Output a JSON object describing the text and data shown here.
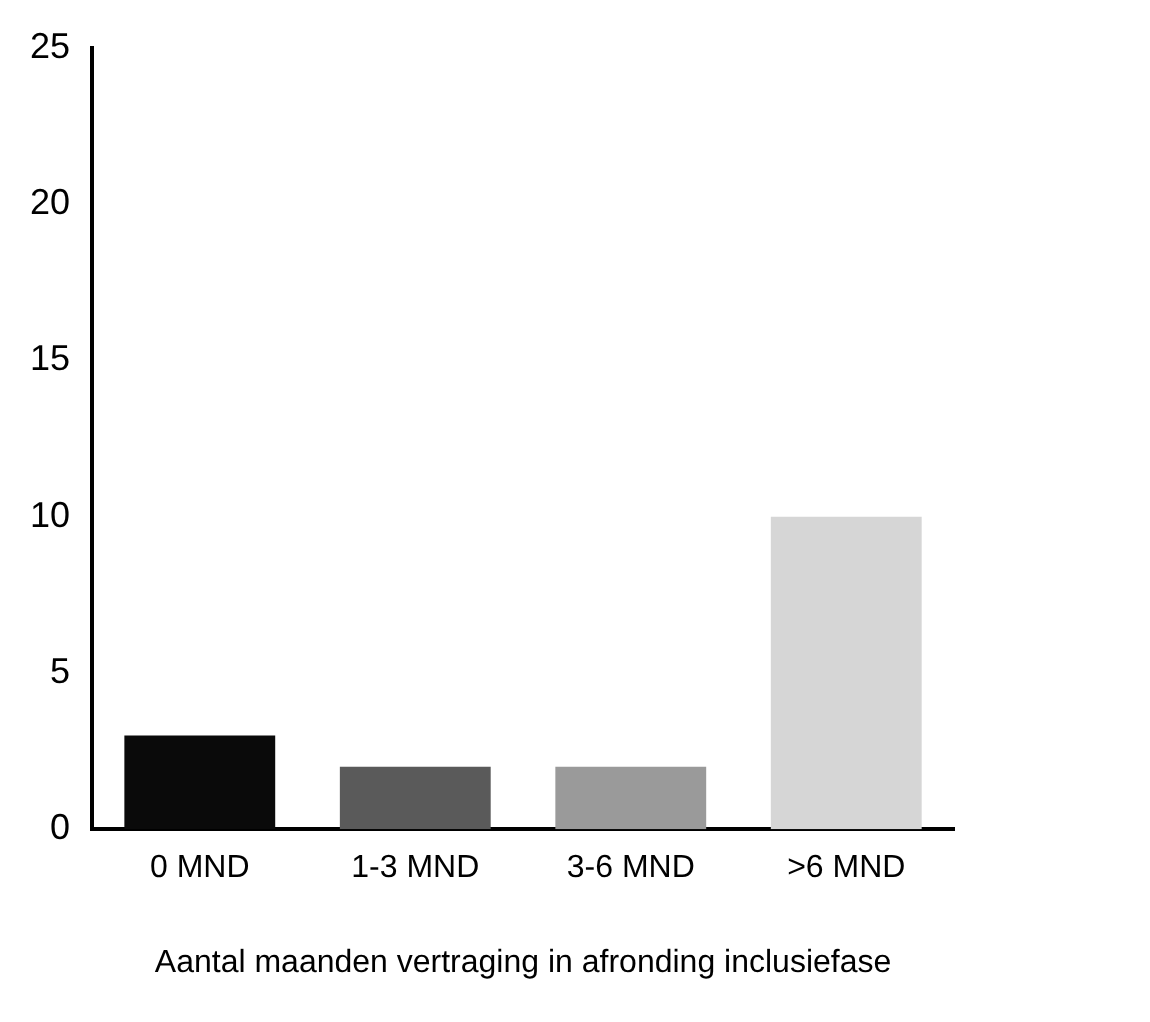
{
  "chart_data": {
    "type": "bar",
    "xlabel": "Aantal maanden vertraging in afronding inclusiefase",
    "categories": [
      "0 MND",
      "1-3 MND",
      "3-6 MND",
      ">6 MND"
    ],
    "values": [
      3,
      2,
      2,
      10
    ],
    "colors": [
      "#0a0a0a",
      "#5a5a5a",
      "#9a9a9a",
      "#d6d6d6"
    ],
    "ylim": [
      0,
      25
    ],
    "yticks": [
      0,
      5,
      10,
      15,
      20,
      25
    ],
    "grid": false,
    "legend": false
  }
}
